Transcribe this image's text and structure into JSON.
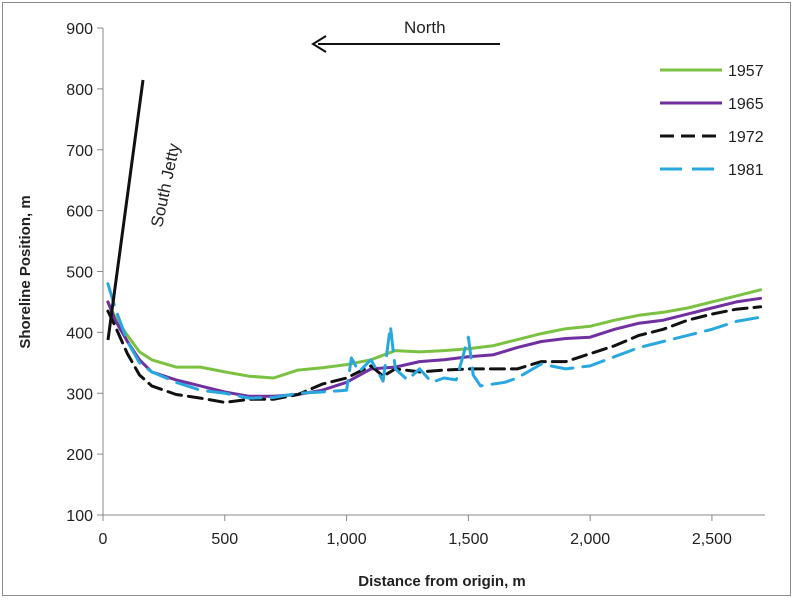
{
  "chart_data": {
    "type": "line",
    "xlabel": "Distance from origin, m",
    "ylabel": "Shoreline Position, m",
    "xlim": [
      0,
      2800
    ],
    "ylim": [
      100,
      900
    ],
    "xticks": [
      0,
      500,
      1000,
      1500,
      2000,
      2500
    ],
    "xtick_labels": [
      "0",
      "500",
      "1,000",
      "1,500",
      "2,000",
      "2,500"
    ],
    "yticks": [
      100,
      200,
      300,
      400,
      500,
      600,
      700,
      800,
      900
    ],
    "ytick_labels": [
      "100",
      "200",
      "300",
      "400",
      "500",
      "600",
      "700",
      "800",
      "900"
    ],
    "grid": false,
    "legend_position": "top-right",
    "series": [
      {
        "name": "1957",
        "color": "#7bc142",
        "dash": "solid",
        "x": [
          20,
          50,
          100,
          150,
          200,
          300,
          400,
          500,
          600,
          700,
          800,
          900,
          1000,
          1100,
          1200,
          1300,
          1400,
          1500,
          1600,
          1700,
          1800,
          1900,
          2000,
          2100,
          2200,
          2300,
          2400,
          2500,
          2600,
          2700
        ],
        "y": [
          450,
          425,
          395,
          368,
          355,
          343,
          343,
          335,
          328,
          325,
          338,
          342,
          347,
          355,
          370,
          368,
          370,
          373,
          378,
          388,
          398,
          406,
          410,
          420,
          428,
          433,
          440,
          450,
          460,
          470
        ]
      },
      {
        "name": "1965",
        "color": "#7030a0",
        "dash": "solid",
        "x": [
          20,
          50,
          100,
          150,
          200,
          300,
          400,
          500,
          600,
          700,
          800,
          900,
          1000,
          1100,
          1200,
          1300,
          1400,
          1500,
          1600,
          1700,
          1800,
          1900,
          2000,
          2100,
          2200,
          2300,
          2400,
          2500,
          2600,
          2700
        ],
        "y": [
          450,
          420,
          385,
          355,
          335,
          322,
          312,
          302,
          295,
          295,
          298,
          305,
          318,
          340,
          343,
          352,
          355,
          360,
          363,
          375,
          385,
          390,
          392,
          405,
          415,
          420,
          430,
          440,
          450,
          456
        ]
      },
      {
        "name": "1972",
        "color": "#111111",
        "dash": "dashed",
        "x": [
          20,
          50,
          100,
          150,
          200,
          300,
          400,
          500,
          600,
          700,
          800,
          900,
          1000,
          1050,
          1100,
          1150,
          1200,
          1300,
          1400,
          1500,
          1600,
          1700,
          1800,
          1900,
          2000,
          2100,
          2200,
          2300,
          2400,
          2500,
          2600,
          2700
        ],
        "y": [
          435,
          410,
          365,
          330,
          312,
          298,
          292,
          285,
          290,
          290,
          298,
          315,
          325,
          335,
          345,
          328,
          340,
          335,
          338,
          340,
          340,
          340,
          352,
          352,
          365,
          378,
          395,
          405,
          420,
          430,
          438,
          442
        ]
      },
      {
        "name": "1981",
        "color": "#29a8e0",
        "dash": "long-dash",
        "x": [
          20,
          50,
          100,
          150,
          200,
          300,
          400,
          500,
          600,
          700,
          800,
          900,
          1000,
          1020,
          1050,
          1100,
          1150,
          1180,
          1200,
          1250,
          1300,
          1350,
          1400,
          1450,
          1500,
          1520,
          1550,
          1600,
          1650,
          1700,
          1800,
          1900,
          2000,
          2100,
          2200,
          2300,
          2400,
          2500,
          2600,
          2700
        ],
        "y": [
          480,
          440,
          385,
          350,
          335,
          318,
          305,
          300,
          292,
          293,
          300,
          302,
          305,
          358,
          335,
          355,
          320,
          410,
          340,
          322,
          340,
          318,
          325,
          322,
          392,
          330,
          312,
          315,
          318,
          325,
          348,
          340,
          345,
          360,
          375,
          385,
          395,
          405,
          418,
          425
        ]
      }
    ],
    "annotations": [
      {
        "text": "North",
        "arrow": "left"
      },
      {
        "text": "South Jetty"
      }
    ]
  }
}
